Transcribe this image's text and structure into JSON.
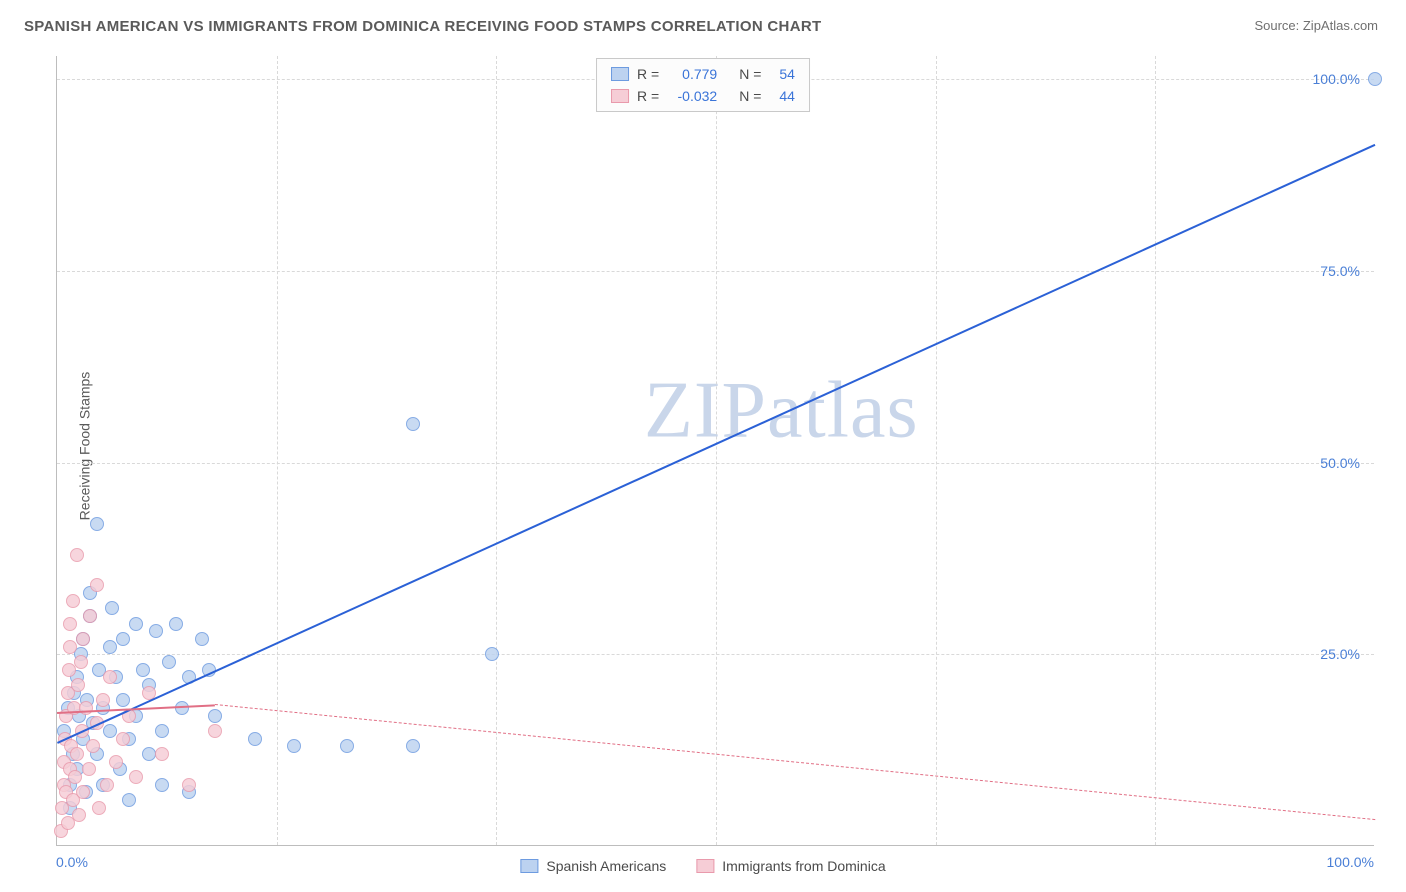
{
  "title": "SPANISH AMERICAN VS IMMIGRANTS FROM DOMINICA RECEIVING FOOD STAMPS CORRELATION CHART",
  "source": "Source: ZipAtlas.com",
  "watermark": "ZIPatlas",
  "y_axis_title": "Receiving Food Stamps",
  "chart": {
    "type": "scatter",
    "xlim": [
      0,
      100
    ],
    "ylim": [
      0,
      103
    ],
    "x_tick_labels": {
      "min": "0.0%",
      "max": "100.0%"
    },
    "y_ticks": [
      {
        "v": 25,
        "label": "25.0%"
      },
      {
        "v": 50,
        "label": "50.0%"
      },
      {
        "v": 75,
        "label": "75.0%"
      },
      {
        "v": 100,
        "label": "100.0%"
      }
    ],
    "x_gridlines": [
      16.67,
      33.33,
      50,
      66.67,
      83.33
    ],
    "background_color": "#ffffff",
    "grid_color": "#d9d9d9",
    "axis_color": "#bdbdbd",
    "tick_label_color": "#4a7fd6",
    "point_radius": 7,
    "point_border_width": 1.2,
    "series": [
      {
        "name": "Spanish Americans",
        "fill": "#bcd2f0",
        "stroke": "#6d9be0",
        "reg_line": {
          "x1": 0,
          "y1": 13.5,
          "x2": 100,
          "y2": 91.5,
          "color": "#2b61d6",
          "width": 2.5,
          "dash": "solid",
          "extrap_dash": "none"
        },
        "R_label": "R =",
        "R": "0.779",
        "N_label": "N =",
        "N": "54",
        "points": [
          [
            0.5,
            15
          ],
          [
            0.8,
            18
          ],
          [
            1,
            8
          ],
          [
            1,
            5
          ],
          [
            1.2,
            12
          ],
          [
            1.3,
            20
          ],
          [
            1.5,
            22
          ],
          [
            1.5,
            10
          ],
          [
            1.7,
            17
          ],
          [
            1.8,
            25
          ],
          [
            2,
            27
          ],
          [
            2,
            14
          ],
          [
            2.2,
            7
          ],
          [
            2.3,
            19
          ],
          [
            2.5,
            30
          ],
          [
            2.5,
            33
          ],
          [
            2.7,
            16
          ],
          [
            3,
            42
          ],
          [
            3,
            12
          ],
          [
            3.2,
            23
          ],
          [
            3.5,
            18
          ],
          [
            3.5,
            8
          ],
          [
            4,
            26
          ],
          [
            4,
            15
          ],
          [
            4.2,
            31
          ],
          [
            4.5,
            22
          ],
          [
            4.8,
            10
          ],
          [
            5,
            19
          ],
          [
            5,
            27
          ],
          [
            5.5,
            14
          ],
          [
            5.5,
            6
          ],
          [
            6,
            29
          ],
          [
            6,
            17
          ],
          [
            6.5,
            23
          ],
          [
            7,
            12
          ],
          [
            7,
            21
          ],
          [
            7.5,
            28
          ],
          [
            8,
            15
          ],
          [
            8,
            8
          ],
          [
            8.5,
            24
          ],
          [
            9,
            29
          ],
          [
            9.5,
            18
          ],
          [
            10,
            22
          ],
          [
            10,
            7
          ],
          [
            11,
            27
          ],
          [
            11.5,
            23
          ],
          [
            12,
            17
          ],
          [
            15,
            14
          ],
          [
            18,
            13
          ],
          [
            22,
            13
          ],
          [
            27,
            13
          ],
          [
            33,
            25
          ],
          [
            27,
            55
          ],
          [
            100,
            100
          ]
        ]
      },
      {
        "name": "Immigrants from Dominica",
        "fill": "#f6cdd6",
        "stroke": "#e99aac",
        "reg_line": {
          "x1": 0,
          "y1": 17.5,
          "x2": 12,
          "y2": 18.5,
          "color": "#e16f85",
          "width": 2,
          "dash": "solid",
          "extrap": {
            "x1": 12,
            "y1": 18.5,
            "x2": 100,
            "y2": 3.5,
            "dash": "dashed"
          }
        },
        "R_label": "R =",
        "R": "-0.032",
        "N_label": "N =",
        "N": "44",
        "points": [
          [
            0.3,
            2
          ],
          [
            0.4,
            5
          ],
          [
            0.5,
            8
          ],
          [
            0.5,
            11
          ],
          [
            0.6,
            14
          ],
          [
            0.7,
            7
          ],
          [
            0.7,
            17
          ],
          [
            0.8,
            20
          ],
          [
            0.8,
            3
          ],
          [
            0.9,
            23
          ],
          [
            1,
            26
          ],
          [
            1,
            10
          ],
          [
            1,
            29
          ],
          [
            1.1,
            13
          ],
          [
            1.2,
            32
          ],
          [
            1.2,
            6
          ],
          [
            1.3,
            18
          ],
          [
            1.4,
            9
          ],
          [
            1.5,
            38
          ],
          [
            1.5,
            12
          ],
          [
            1.6,
            21
          ],
          [
            1.7,
            4
          ],
          [
            1.8,
            24
          ],
          [
            1.9,
            15
          ],
          [
            2,
            27
          ],
          [
            2,
            7
          ],
          [
            2.2,
            18
          ],
          [
            2.4,
            10
          ],
          [
            2.5,
            30
          ],
          [
            2.7,
            13
          ],
          [
            3,
            34
          ],
          [
            3,
            16
          ],
          [
            3.2,
            5
          ],
          [
            3.5,
            19
          ],
          [
            3.8,
            8
          ],
          [
            4,
            22
          ],
          [
            4.5,
            11
          ],
          [
            5,
            14
          ],
          [
            5.5,
            17
          ],
          [
            6,
            9
          ],
          [
            7,
            20
          ],
          [
            8,
            12
          ],
          [
            10,
            8
          ],
          [
            12,
            15
          ]
        ]
      }
    ]
  },
  "legend_bottom": [
    {
      "label": "Spanish Americans",
      "fill": "#bcd2f0",
      "stroke": "#6d9be0"
    },
    {
      "label": "Immigrants from Dominica",
      "fill": "#f6cdd6",
      "stroke": "#e99aac"
    }
  ]
}
